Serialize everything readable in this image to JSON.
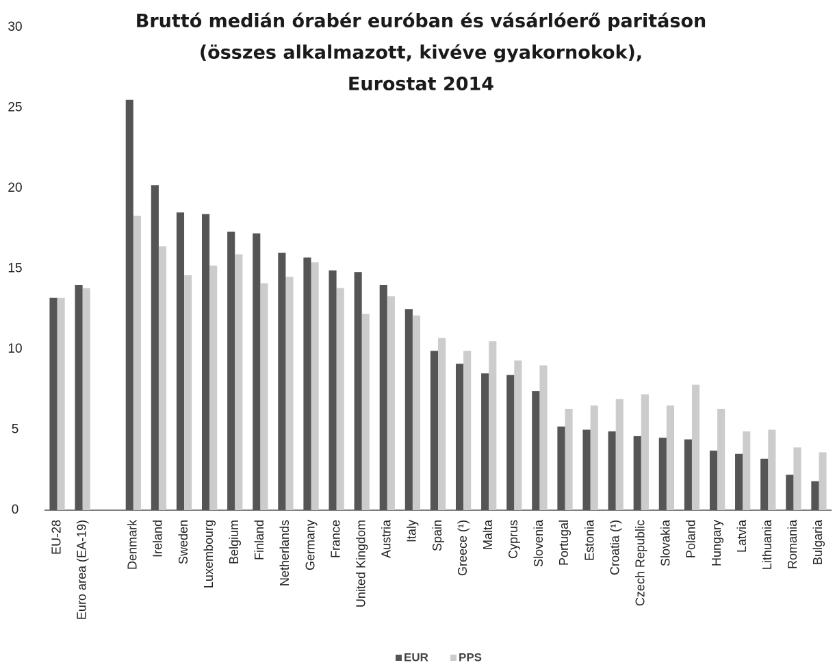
{
  "chart_data": {
    "type": "bar",
    "title": [
      "Bruttó medián órabér euróban és vásárlóerő paritáson",
      "(összes alkalmazott, kivéve gyakornokok),",
      "Eurostat 2014"
    ],
    "categories": [
      "EU-28",
      "Euro area (EA-19)",
      null,
      "Denmark",
      "Ireland",
      "Sweden",
      "Luxembourg",
      "Belgium",
      "Finland",
      "Netherlands",
      "Germany",
      "France",
      "United Kingdom",
      "Austria",
      "Italy",
      "Spain",
      "Greece (¹)",
      "Malta",
      "Cyprus",
      "Slovenia",
      "Portugal",
      "Estonia",
      "Croatia (¹)",
      "Czech Republic",
      "Slovakia",
      "Poland",
      "Hungary",
      "Latvia",
      "Lithuania",
      "Romania",
      "Bulgaria"
    ],
    "series": [
      {
        "name": "EUR",
        "color": "#555555",
        "values": [
          13.2,
          14.0,
          null,
          25.5,
          20.2,
          18.5,
          18.4,
          17.3,
          17.2,
          16.0,
          15.7,
          14.9,
          14.8,
          14.0,
          12.5,
          9.9,
          9.1,
          8.5,
          8.4,
          7.4,
          5.2,
          5.0,
          4.9,
          4.6,
          4.5,
          4.4,
          3.7,
          3.5,
          3.2,
          2.2,
          1.8
        ]
      },
      {
        "name": "PPS",
        "color": "#cccccc",
        "values": [
          13.2,
          13.8,
          null,
          18.3,
          16.4,
          14.6,
          15.2,
          15.9,
          14.1,
          14.5,
          15.4,
          13.8,
          12.2,
          13.3,
          12.1,
          10.7,
          9.9,
          10.5,
          9.3,
          9.0,
          6.3,
          6.5,
          6.9,
          7.2,
          6.5,
          7.8,
          6.3,
          4.9,
          5.0,
          3.9,
          3.6
        ]
      }
    ],
    "ylim": [
      0,
      30
    ],
    "yticks": [
      0,
      5,
      10,
      15,
      20,
      25,
      30
    ],
    "grid": false
  }
}
